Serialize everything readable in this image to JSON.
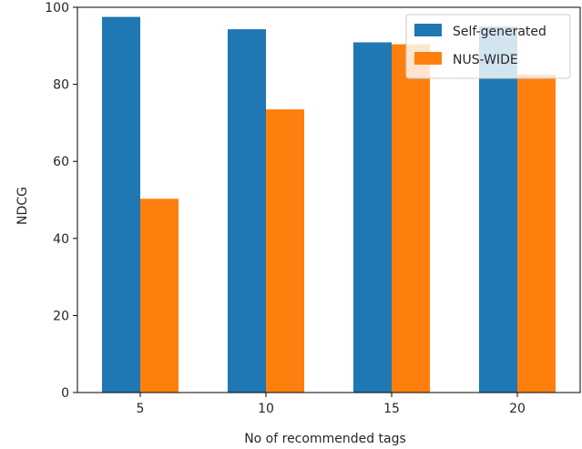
{
  "chart_data": {
    "type": "bar",
    "categories": [
      "5",
      "10",
      "15",
      "20"
    ],
    "series": [
      {
        "name": "Self-generated",
        "color": "#1f77b4",
        "values": [
          97.5,
          94.3,
          90.9,
          95.0
        ]
      },
      {
        "name": "NUS-WIDE",
        "color": "#ff7f0e",
        "values": [
          50.3,
          73.5,
          90.4,
          82.5
        ]
      }
    ],
    "xlabel": "No of recommended tags",
    "ylabel": "NDCG",
    "ylim": [
      0,
      100
    ],
    "yticks": [
      "0",
      "20",
      "40",
      "60",
      "80",
      "100"
    ],
    "grid": false,
    "legend_position": "top-right"
  }
}
